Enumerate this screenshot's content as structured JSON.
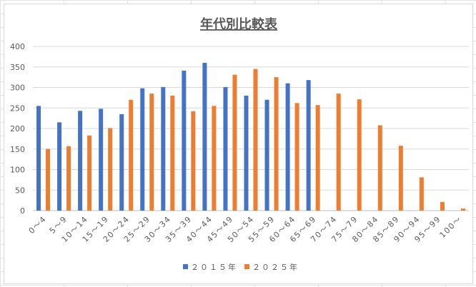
{
  "chart_data": {
    "type": "bar",
    "title": "年代別比較表",
    "xlabel": "",
    "ylabel": "",
    "ylim": [
      0,
      400
    ],
    "yticks": [
      0,
      50,
      100,
      150,
      200,
      250,
      300,
      350,
      400
    ],
    "grid": true,
    "legend_position": "bottom",
    "categories": [
      "0～4",
      "5～9",
      "10～14",
      "15～19",
      "20～24",
      "25～29",
      "30～34",
      "35～39",
      "40～44",
      "45～49",
      "50～54",
      "55～59",
      "60～64",
      "65～69",
      "70～74",
      "75～79",
      "80～84",
      "85～89",
      "90～94",
      "95～99",
      "100～"
    ],
    "series": [
      {
        "name": "２０１５年",
        "color": "#4472C4",
        "values": [
          255,
          215,
          243,
          248,
          235,
          298,
          301,
          341,
          360,
          301,
          280,
          270,
          310,
          318,
          null,
          null,
          null,
          null,
          null,
          null,
          null
        ]
      },
      {
        "name": "２０２５年",
        "color": "#ED7D31",
        "values": [
          150,
          157,
          183,
          201,
          270,
          285,
          280,
          242,
          255,
          331,
          345,
          325,
          262,
          257,
          285,
          271,
          208,
          158,
          81,
          21,
          5
        ]
      }
    ]
  }
}
